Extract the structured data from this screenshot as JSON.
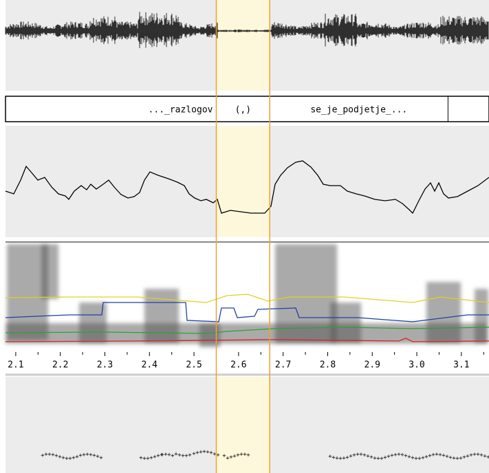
{
  "selection": {
    "start": 2.55,
    "end": 2.67
  },
  "tier": {
    "labels": [
      "..._razlogov",
      "(,)",
      "se_je_podjetje_..."
    ],
    "boundaries": [
      2.55,
      2.67,
      3.07
    ]
  },
  "time_axis": {
    "xlim": [
      2.077,
      3.162
    ],
    "xticks": [
      2.1,
      2.2,
      2.3,
      2.4,
      2.5,
      2.6,
      2.7,
      2.8,
      2.9,
      {
        "value": 3,
        "label": "3.0"
      },
      3.1
    ]
  }
}
